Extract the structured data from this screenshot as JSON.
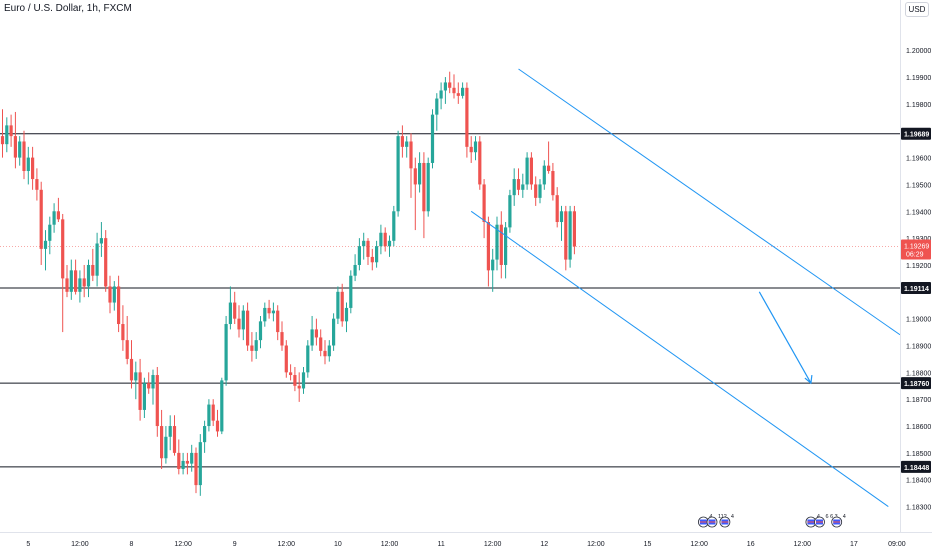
{
  "header": {
    "title": "Euro / U.S. Dollar, 1h, FXCM",
    "currency": "USD"
  },
  "colors": {
    "up": "#26a69a",
    "down": "#ef5350",
    "hline": "#131722",
    "channel": "#2196f3",
    "current_price_line": "#f7a9a7"
  },
  "price_axis": {
    "ticks": [
      {
        "value": 1.2,
        "label": "1.20000"
      },
      {
        "value": 1.199,
        "label": "1.19900"
      },
      {
        "value": 1.198,
        "label": "1.19800"
      },
      {
        "value": 1.196,
        "label": "1.19600"
      },
      {
        "value": 1.195,
        "label": "1.19500"
      },
      {
        "value": 1.194,
        "label": "1.19400"
      },
      {
        "value": 1.193,
        "label": "1.19300"
      },
      {
        "value": 1.192,
        "label": "1.19200"
      },
      {
        "value": 1.19,
        "label": "1.19000"
      },
      {
        "value": 1.189,
        "label": "1.18900"
      },
      {
        "value": 1.188,
        "label": "1.18800"
      },
      {
        "value": 1.187,
        "label": "1.18700"
      },
      {
        "value": 1.186,
        "label": "1.18600"
      },
      {
        "value": 1.185,
        "label": "1.18500"
      },
      {
        "value": 1.184,
        "label": "1.18400"
      },
      {
        "value": 1.183,
        "label": "1.18300"
      }
    ],
    "levels": [
      {
        "value": 1.19689,
        "label": "1.19689"
      },
      {
        "value": 1.19114,
        "label": "1.19114"
      },
      {
        "value": 1.1876,
        "label": "1.18760"
      },
      {
        "value": 1.18448,
        "label": "1.18448"
      }
    ],
    "current": {
      "value": 1.19269,
      "label": "1.19269",
      "countdown": "06:29"
    }
  },
  "time_axis": {
    "labels": [
      {
        "bar": 6,
        "label": "5"
      },
      {
        "bar": 18,
        "label": "12:00"
      },
      {
        "bar": 30,
        "label": "8"
      },
      {
        "bar": 42,
        "label": "12:00"
      },
      {
        "bar": 54,
        "label": "9"
      },
      {
        "bar": 66,
        "label": "12:00"
      },
      {
        "bar": 78,
        "label": "10"
      },
      {
        "bar": 90,
        "label": "12:00"
      },
      {
        "bar": 102,
        "label": "11"
      },
      {
        "bar": 114,
        "label": "12:00"
      },
      {
        "bar": 126,
        "label": "12"
      },
      {
        "bar": 138,
        "label": "12:00"
      },
      {
        "bar": 150,
        "label": "15"
      },
      {
        "bar": 162,
        "label": "12:00"
      },
      {
        "bar": 174,
        "label": "16"
      },
      {
        "bar": 186,
        "label": "12:00"
      },
      {
        "bar": 198,
        "label": "17"
      },
      {
        "bar": 208,
        "label": "09:00"
      }
    ]
  },
  "events": [
    {
      "bar": 163,
      "label": "4"
    },
    {
      "bar": 165,
      "label": "112"
    },
    {
      "bar": 168,
      "label": "4"
    },
    {
      "bar": 188,
      "label": "4"
    },
    {
      "bar": 190,
      "label": "6 6 3"
    },
    {
      "bar": 194,
      "label": "4"
    }
  ],
  "chart_data": {
    "type": "candlestick",
    "symbol": "EURUSD",
    "timeframe": "1h",
    "ylim": [
      1.1825,
      1.2012
    ],
    "candles": [
      {
        "o": 1.1968,
        "h": 1.1978,
        "l": 1.196,
        "c": 1.1965
      },
      {
        "o": 1.1965,
        "h": 1.1975,
        "l": 1.1962,
        "c": 1.1972
      },
      {
        "o": 1.1972,
        "h": 1.1976,
        "l": 1.1964,
        "c": 1.1968
      },
      {
        "o": 1.1968,
        "h": 1.1977,
        "l": 1.1956,
        "c": 1.196
      },
      {
        "o": 1.196,
        "h": 1.1968,
        "l": 1.1957,
        "c": 1.1966
      },
      {
        "o": 1.1966,
        "h": 1.197,
        "l": 1.1952,
        "c": 1.1955
      },
      {
        "o": 1.1955,
        "h": 1.1964,
        "l": 1.195,
        "c": 1.196
      },
      {
        "o": 1.196,
        "h": 1.1964,
        "l": 1.1948,
        "c": 1.1952
      },
      {
        "o": 1.1952,
        "h": 1.1956,
        "l": 1.1944,
        "c": 1.1948
      },
      {
        "o": 1.1948,
        "h": 1.1951,
        "l": 1.192,
        "c": 1.1926
      },
      {
        "o": 1.1926,
        "h": 1.1933,
        "l": 1.1918,
        "c": 1.1929
      },
      {
        "o": 1.1929,
        "h": 1.1938,
        "l": 1.1924,
        "c": 1.1935
      },
      {
        "o": 1.1935,
        "h": 1.1943,
        "l": 1.1932,
        "c": 1.194
      },
      {
        "o": 1.194,
        "h": 1.1945,
        "l": 1.1936,
        "c": 1.1937
      },
      {
        "o": 1.1937,
        "h": 1.1939,
        "l": 1.1895,
        "c": 1.1915
      },
      {
        "o": 1.1915,
        "h": 1.192,
        "l": 1.1908,
        "c": 1.191
      },
      {
        "o": 1.191,
        "h": 1.1922,
        "l": 1.1907,
        "c": 1.1918
      },
      {
        "o": 1.1918,
        "h": 1.1922,
        "l": 1.1909,
        "c": 1.191
      },
      {
        "o": 1.191,
        "h": 1.1918,
        "l": 1.1906,
        "c": 1.1915
      },
      {
        "o": 1.1915,
        "h": 1.192,
        "l": 1.1908,
        "c": 1.1912
      },
      {
        "o": 1.1912,
        "h": 1.1922,
        "l": 1.1908,
        "c": 1.192
      },
      {
        "o": 1.192,
        "h": 1.1926,
        "l": 1.1914,
        "c": 1.1916
      },
      {
        "o": 1.1916,
        "h": 1.1932,
        "l": 1.1912,
        "c": 1.1928
      },
      {
        "o": 1.1928,
        "h": 1.1936,
        "l": 1.1923,
        "c": 1.193
      },
      {
        "o": 1.193,
        "h": 1.1933,
        "l": 1.191,
        "c": 1.1912
      },
      {
        "o": 1.1912,
        "h": 1.1916,
        "l": 1.1902,
        "c": 1.1906
      },
      {
        "o": 1.1906,
        "h": 1.1914,
        "l": 1.1903,
        "c": 1.1912
      },
      {
        "o": 1.1912,
        "h": 1.1916,
        "l": 1.1895,
        "c": 1.1898
      },
      {
        "o": 1.1898,
        "h": 1.1905,
        "l": 1.1888,
        "c": 1.1892
      },
      {
        "o": 1.1892,
        "h": 1.1901,
        "l": 1.1883,
        "c": 1.1885
      },
      {
        "o": 1.1885,
        "h": 1.1892,
        "l": 1.1874,
        "c": 1.1877
      },
      {
        "o": 1.1877,
        "h": 1.1884,
        "l": 1.187,
        "c": 1.188
      },
      {
        "o": 1.188,
        "h": 1.1885,
        "l": 1.1862,
        "c": 1.1866
      },
      {
        "o": 1.1866,
        "h": 1.1878,
        "l": 1.1863,
        "c": 1.1876
      },
      {
        "o": 1.1876,
        "h": 1.188,
        "l": 1.1872,
        "c": 1.1874
      },
      {
        "o": 1.1874,
        "h": 1.1881,
        "l": 1.1868,
        "c": 1.1879
      },
      {
        "o": 1.1879,
        "h": 1.1882,
        "l": 1.1856,
        "c": 1.186
      },
      {
        "o": 1.186,
        "h": 1.1866,
        "l": 1.1844,
        "c": 1.1848
      },
      {
        "o": 1.1848,
        "h": 1.186,
        "l": 1.1846,
        "c": 1.1856
      },
      {
        "o": 1.1856,
        "h": 1.1864,
        "l": 1.1851,
        "c": 1.186
      },
      {
        "o": 1.186,
        "h": 1.1864,
        "l": 1.1849,
        "c": 1.185
      },
      {
        "o": 1.185,
        "h": 1.1855,
        "l": 1.1842,
        "c": 1.1844
      },
      {
        "o": 1.1844,
        "h": 1.185,
        "l": 1.1842,
        "c": 1.1847
      },
      {
        "o": 1.1847,
        "h": 1.185,
        "l": 1.1842,
        "c": 1.1846
      },
      {
        "o": 1.1846,
        "h": 1.1853,
        "l": 1.1843,
        "c": 1.185
      },
      {
        "o": 1.185,
        "h": 1.1852,
        "l": 1.1835,
        "c": 1.1838
      },
      {
        "o": 1.1838,
        "h": 1.1857,
        "l": 1.1834,
        "c": 1.1854
      },
      {
        "o": 1.1854,
        "h": 1.1862,
        "l": 1.185,
        "c": 1.186
      },
      {
        "o": 1.186,
        "h": 1.187,
        "l": 1.1858,
        "c": 1.1868
      },
      {
        "o": 1.1868,
        "h": 1.187,
        "l": 1.186,
        "c": 1.1862
      },
      {
        "o": 1.1862,
        "h": 1.1866,
        "l": 1.1856,
        "c": 1.1858
      },
      {
        "o": 1.1858,
        "h": 1.1878,
        "l": 1.1857,
        "c": 1.1877
      },
      {
        "o": 1.1877,
        "h": 1.1901,
        "l": 1.1875,
        "c": 1.1898
      },
      {
        "o": 1.1898,
        "h": 1.1912,
        "l": 1.1896,
        "c": 1.1906
      },
      {
        "o": 1.1906,
        "h": 1.191,
        "l": 1.1898,
        "c": 1.19
      },
      {
        "o": 1.19,
        "h": 1.1905,
        "l": 1.1893,
        "c": 1.1896
      },
      {
        "o": 1.1896,
        "h": 1.1905,
        "l": 1.1892,
        "c": 1.1903
      },
      {
        "o": 1.1903,
        "h": 1.1906,
        "l": 1.1888,
        "c": 1.189
      },
      {
        "o": 1.189,
        "h": 1.1895,
        "l": 1.1884,
        "c": 1.1888
      },
      {
        "o": 1.1888,
        "h": 1.1895,
        "l": 1.1885,
        "c": 1.1892
      },
      {
        "o": 1.1892,
        "h": 1.1901,
        "l": 1.1889,
        "c": 1.1899
      },
      {
        "o": 1.1899,
        "h": 1.1906,
        "l": 1.1897,
        "c": 1.1904
      },
      {
        "o": 1.1904,
        "h": 1.1907,
        "l": 1.19,
        "c": 1.1902
      },
      {
        "o": 1.1902,
        "h": 1.1906,
        "l": 1.1899,
        "c": 1.1903
      },
      {
        "o": 1.1903,
        "h": 1.1905,
        "l": 1.1892,
        "c": 1.1895
      },
      {
        "o": 1.1895,
        "h": 1.1899,
        "l": 1.1888,
        "c": 1.189
      },
      {
        "o": 1.189,
        "h": 1.1892,
        "l": 1.1878,
        "c": 1.188
      },
      {
        "o": 1.188,
        "h": 1.1883,
        "l": 1.1877,
        "c": 1.1879
      },
      {
        "o": 1.1879,
        "h": 1.1882,
        "l": 1.1873,
        "c": 1.1875
      },
      {
        "o": 1.1875,
        "h": 1.188,
        "l": 1.1869,
        "c": 1.1874
      },
      {
        "o": 1.1874,
        "h": 1.1882,
        "l": 1.1872,
        "c": 1.188
      },
      {
        "o": 1.188,
        "h": 1.1892,
        "l": 1.1878,
        "c": 1.189
      },
      {
        "o": 1.189,
        "h": 1.1901,
        "l": 1.1888,
        "c": 1.1896
      },
      {
        "o": 1.1896,
        "h": 1.19,
        "l": 1.189,
        "c": 1.1893
      },
      {
        "o": 1.1893,
        "h": 1.1896,
        "l": 1.1886,
        "c": 1.1888
      },
      {
        "o": 1.1888,
        "h": 1.1892,
        "l": 1.1883,
        "c": 1.1886
      },
      {
        "o": 1.1886,
        "h": 1.1892,
        "l": 1.1884,
        "c": 1.189
      },
      {
        "o": 1.189,
        "h": 1.1902,
        "l": 1.1888,
        "c": 1.19
      },
      {
        "o": 1.19,
        "h": 1.1912,
        "l": 1.1898,
        "c": 1.191
      },
      {
        "o": 1.191,
        "h": 1.1913,
        "l": 1.1897,
        "c": 1.1899
      },
      {
        "o": 1.1899,
        "h": 1.1906,
        "l": 1.1895,
        "c": 1.1904
      },
      {
        "o": 1.1904,
        "h": 1.1918,
        "l": 1.1902,
        "c": 1.1916
      },
      {
        "o": 1.1916,
        "h": 1.1924,
        "l": 1.1914,
        "c": 1.192
      },
      {
        "o": 1.192,
        "h": 1.193,
        "l": 1.1918,
        "c": 1.1927
      },
      {
        "o": 1.1927,
        "h": 1.1932,
        "l": 1.1922,
        "c": 1.1929
      },
      {
        "o": 1.1929,
        "h": 1.193,
        "l": 1.192,
        "c": 1.1923
      },
      {
        "o": 1.1923,
        "h": 1.1926,
        "l": 1.1918,
        "c": 1.1921
      },
      {
        "o": 1.1921,
        "h": 1.1929,
        "l": 1.1919,
        "c": 1.1927
      },
      {
        "o": 1.1927,
        "h": 1.1935,
        "l": 1.1924,
        "c": 1.1932
      },
      {
        "o": 1.1932,
        "h": 1.1934,
        "l": 1.1925,
        "c": 1.1927
      },
      {
        "o": 1.1927,
        "h": 1.1931,
        "l": 1.1923,
        "c": 1.1929
      },
      {
        "o": 1.1929,
        "h": 1.1942,
        "l": 1.1927,
        "c": 1.194
      },
      {
        "o": 1.194,
        "h": 1.197,
        "l": 1.1938,
        "c": 1.1968
      },
      {
        "o": 1.1968,
        "h": 1.1972,
        "l": 1.196,
        "c": 1.1964
      },
      {
        "o": 1.1964,
        "h": 1.1968,
        "l": 1.196,
        "c": 1.1966
      },
      {
        "o": 1.1966,
        "h": 1.1969,
        "l": 1.1945,
        "c": 1.1956
      },
      {
        "o": 1.1956,
        "h": 1.196,
        "l": 1.1933,
        "c": 1.195
      },
      {
        "o": 1.195,
        "h": 1.1962,
        "l": 1.1947,
        "c": 1.1958
      },
      {
        "o": 1.1958,
        "h": 1.1962,
        "l": 1.193,
        "c": 1.194
      },
      {
        "o": 1.194,
        "h": 1.196,
        "l": 1.1938,
        "c": 1.1958
      },
      {
        "o": 1.1958,
        "h": 1.1978,
        "l": 1.1956,
        "c": 1.1976
      },
      {
        "o": 1.1976,
        "h": 1.1984,
        "l": 1.197,
        "c": 1.1982
      },
      {
        "o": 1.1982,
        "h": 1.1988,
        "l": 1.1978,
        "c": 1.1985
      },
      {
        "o": 1.1985,
        "h": 1.199,
        "l": 1.198,
        "c": 1.1988
      },
      {
        "o": 1.1988,
        "h": 1.1992,
        "l": 1.1984,
        "c": 1.1986
      },
      {
        "o": 1.1986,
        "h": 1.1991,
        "l": 1.1982,
        "c": 1.1984
      },
      {
        "o": 1.1984,
        "h": 1.1988,
        "l": 1.198,
        "c": 1.1983
      },
      {
        "o": 1.1983,
        "h": 1.1988,
        "l": 1.1982,
        "c": 1.1986
      },
      {
        "o": 1.1986,
        "h": 1.1988,
        "l": 1.196,
        "c": 1.1964
      },
      {
        "o": 1.1964,
        "h": 1.1968,
        "l": 1.1958,
        "c": 1.1962
      },
      {
        "o": 1.1962,
        "h": 1.1968,
        "l": 1.1959,
        "c": 1.1966
      },
      {
        "o": 1.1966,
        "h": 1.1968,
        "l": 1.1948,
        "c": 1.195
      },
      {
        "o": 1.195,
        "h": 1.1952,
        "l": 1.193,
        "c": 1.1936
      },
      {
        "o": 1.1936,
        "h": 1.1938,
        "l": 1.1912,
        "c": 1.1918
      },
      {
        "o": 1.1918,
        "h": 1.1926,
        "l": 1.191,
        "c": 1.1922
      },
      {
        "o": 1.1922,
        "h": 1.1938,
        "l": 1.1918,
        "c": 1.1935
      },
      {
        "o": 1.1935,
        "h": 1.194,
        "l": 1.1915,
        "c": 1.192
      },
      {
        "o": 1.192,
        "h": 1.1936,
        "l": 1.1915,
        "c": 1.1934
      },
      {
        "o": 1.1934,
        "h": 1.1948,
        "l": 1.1932,
        "c": 1.1946
      },
      {
        "o": 1.1946,
        "h": 1.1956,
        "l": 1.1942,
        "c": 1.1952
      },
      {
        "o": 1.1952,
        "h": 1.1956,
        "l": 1.1946,
        "c": 1.1948
      },
      {
        "o": 1.1948,
        "h": 1.1954,
        "l": 1.1945,
        "c": 1.195
      },
      {
        "o": 1.195,
        "h": 1.1962,
        "l": 1.1948,
        "c": 1.196
      },
      {
        "o": 1.196,
        "h": 1.1962,
        "l": 1.1948,
        "c": 1.195
      },
      {
        "o": 1.195,
        "h": 1.1953,
        "l": 1.1942,
        "c": 1.1945
      },
      {
        "o": 1.1945,
        "h": 1.1952,
        "l": 1.1943,
        "c": 1.195
      },
      {
        "o": 1.195,
        "h": 1.1959,
        "l": 1.1948,
        "c": 1.1957
      },
      {
        "o": 1.1957,
        "h": 1.1966,
        "l": 1.1954,
        "c": 1.1955
      },
      {
        "o": 1.1955,
        "h": 1.1958,
        "l": 1.1944,
        "c": 1.1946
      },
      {
        "o": 1.1946,
        "h": 1.1949,
        "l": 1.1934,
        "c": 1.1936
      },
      {
        "o": 1.1936,
        "h": 1.1942,
        "l": 1.1929,
        "c": 1.194
      },
      {
        "o": 1.194,
        "h": 1.1942,
        "l": 1.1918,
        "c": 1.1922
      },
      {
        "o": 1.1922,
        "h": 1.1942,
        "l": 1.1919,
        "c": 1.194
      },
      {
        "o": 1.194,
        "h": 1.1942,
        "l": 1.1924,
        "c": 1.19269
      }
    ]
  }
}
